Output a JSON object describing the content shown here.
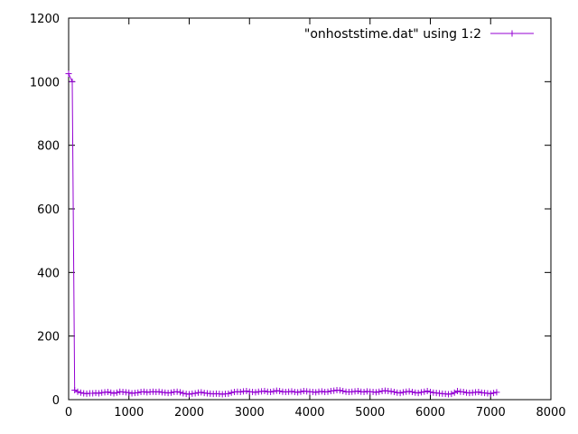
{
  "chart_data": {
    "type": "line",
    "title": "",
    "xlabel": "",
    "ylabel": "",
    "xlim": [
      0,
      8000
    ],
    "ylim": [
      0,
      1200
    ],
    "x_ticks": [
      "0",
      "1000",
      "2000",
      "3000",
      "4000",
      "5000",
      "6000",
      "7000",
      "8000"
    ],
    "y_ticks": [
      "0",
      "200",
      "400",
      "600",
      "800",
      "1000",
      "1200"
    ],
    "grid": false,
    "legend_position": "top-right",
    "series": [
      {
        "name": "\"onhoststime.dat\" using 1:2",
        "color": "#9400d3",
        "marker": "plus",
        "x": [
          0,
          60,
          100,
          150,
          200,
          250,
          300,
          350,
          400,
          450,
          500,
          550,
          600,
          650,
          700,
          750,
          800,
          850,
          900,
          950,
          1000,
          1050,
          1100,
          1150,
          1200,
          1250,
          1300,
          1350,
          1400,
          1450,
          1500,
          1550,
          1600,
          1650,
          1700,
          1750,
          1800,
          1850,
          1900,
          1950,
          2000,
          2050,
          2100,
          2150,
          2200,
          2250,
          2300,
          2350,
          2400,
          2450,
          2500,
          2550,
          2600,
          2650,
          2700,
          2750,
          2800,
          2850,
          2900,
          2950,
          3000,
          3050,
          3100,
          3150,
          3200,
          3250,
          3300,
          3350,
          3400,
          3450,
          3500,
          3550,
          3600,
          3650,
          3700,
          3750,
          3800,
          3850,
          3900,
          3950,
          4000,
          4050,
          4100,
          4150,
          4200,
          4250,
          4300,
          4350,
          4400,
          4450,
          4500,
          4550,
          4600,
          4650,
          4700,
          4750,
          4800,
          4850,
          4900,
          4950,
          5000,
          5050,
          5100,
          5150,
          5200,
          5250,
          5300,
          5350,
          5400,
          5450,
          5500,
          5550,
          5600,
          5650,
          5700,
          5750,
          5800,
          5850,
          5900,
          5950,
          6000,
          6050,
          6100,
          6150,
          6200,
          6250,
          6300,
          6350,
          6400,
          6450,
          6500,
          6550,
          6600,
          6650,
          6700,
          6750,
          6800,
          6850,
          6900,
          6950,
          7000,
          7050,
          7100
        ],
        "y": [
          1025,
          1000,
          30,
          25,
          22,
          20,
          19,
          20,
          20,
          21,
          20,
          22,
          23,
          24,
          22,
          20,
          22,
          25,
          24,
          23,
          22,
          20,
          21,
          22,
          24,
          25,
          23,
          24,
          25,
          24,
          25,
          23,
          22,
          21,
          22,
          24,
          25,
          23,
          20,
          18,
          17,
          19,
          20,
          22,
          23,
          21,
          20,
          19,
          18,
          19,
          18,
          17,
          18,
          19,
          22,
          24,
          25,
          24,
          26,
          27,
          25,
          24,
          23,
          25,
          26,
          27,
          25,
          24,
          26,
          28,
          27,
          25,
          24,
          25,
          26,
          24,
          23,
          25,
          27,
          26,
          25,
          24,
          23,
          25,
          26,
          24,
          25,
          27,
          28,
          30,
          29,
          27,
          25,
          24,
          25,
          26,
          27,
          25,
          24,
          26,
          25,
          24,
          23,
          25,
          27,
          28,
          27,
          26,
          24,
          22,
          21,
          23,
          25,
          26,
          24,
          22,
          21,
          23,
          25,
          27,
          24,
          22,
          21,
          20,
          19,
          18,
          17,
          18,
          22,
          27,
          25,
          24,
          22,
          21,
          22,
          23,
          24,
          22,
          21,
          20,
          19,
          21,
          23
        ]
      }
    ]
  }
}
